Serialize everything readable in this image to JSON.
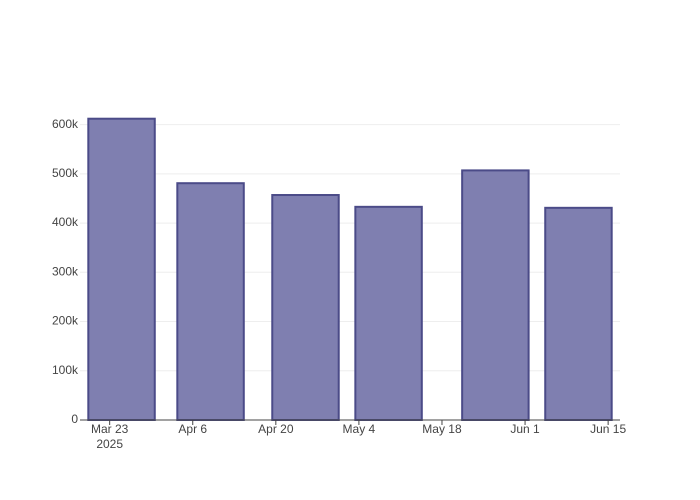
{
  "chart_data": {
    "type": "bar",
    "x": [
      "2025-03-25",
      "2025-04-09",
      "2025-04-25",
      "2025-05-09",
      "2025-05-27",
      "2025-06-10"
    ],
    "values": [
      612000,
      481000,
      457000,
      433000,
      507000,
      431000
    ],
    "color": "#7f7fb0",
    "edge_color": "#4b4b88",
    "bar_width_days": 11.2,
    "xlim": [
      "2025-03-18",
      "2025-06-17"
    ],
    "xticks": [
      {
        "value": "2025-03-23",
        "label": "Mar 23"
      },
      {
        "value": "2025-04-06",
        "label": "Apr 6"
      },
      {
        "value": "2025-04-20",
        "label": "Apr 20"
      },
      {
        "value": "2025-05-04",
        "label": "May 4"
      },
      {
        "value": "2025-05-18",
        "label": "May 18"
      },
      {
        "value": "2025-06-01",
        "label": "Jun 1"
      },
      {
        "value": "2025-06-15",
        "label": "Jun 15"
      }
    ],
    "x_year_label": "2025",
    "ylim": [
      0,
      650000
    ],
    "yticks": [
      0,
      {
        "value": 100000,
        "label": "100k"
      },
      {
        "value": 200000,
        "label": "200k"
      },
      {
        "value": 300000,
        "label": "300k"
      },
      {
        "value": 400000,
        "label": "400k"
      },
      {
        "value": 500000,
        "label": "500k"
      },
      {
        "value": 600000,
        "label": "600k"
      }
    ],
    "grid": true
  }
}
